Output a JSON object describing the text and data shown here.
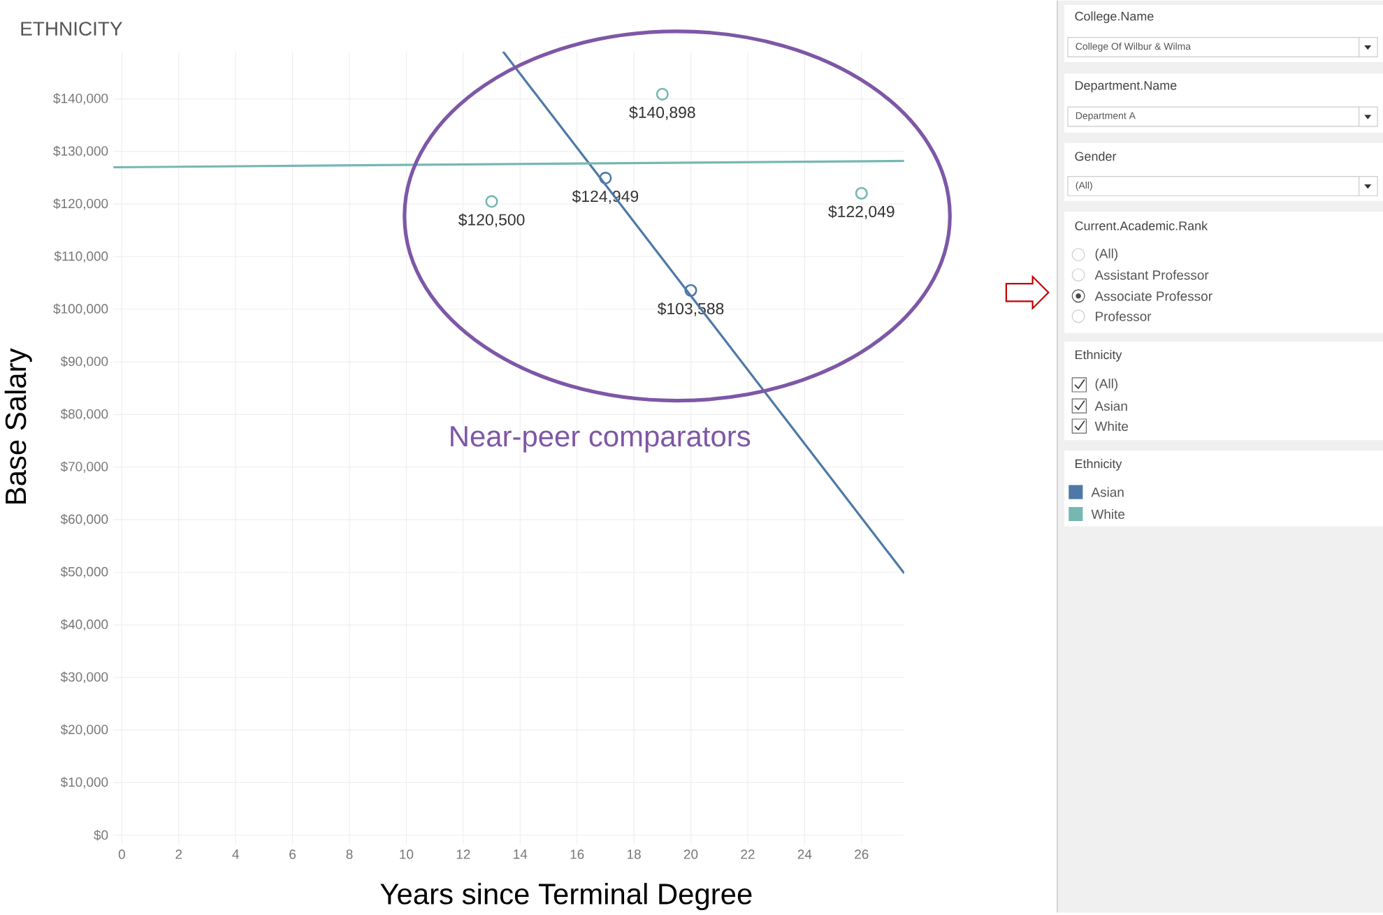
{
  "chart_data": [
    {
      "type": "scatter",
      "title": "ETHNICITY",
      "xlabel": "Years since Terminal Degree",
      "ylabel": "Base Salary",
      "legend_title": "Ethnicity",
      "legend": "right",
      "grid": true,
      "marker": "circle",
      "xlim": [
        -0.3,
        27.5
      ],
      "ylim": [
        -1800,
        149000
      ],
      "xticks": [
        0,
        2,
        4,
        6,
        8,
        10,
        12,
        14,
        16,
        18,
        20,
        22,
        24,
        26
      ],
      "yticks": [
        {
          "value": 0,
          "label": "$0"
        },
        {
          "value": 10000,
          "label": "$10,000"
        },
        {
          "value": 20000,
          "label": "$20,000"
        },
        {
          "value": 30000,
          "label": "$30,000"
        },
        {
          "value": 40000,
          "label": "$40,000"
        },
        {
          "value": 50000,
          "label": "$50,000"
        },
        {
          "value": 60000,
          "label": "$60,000"
        },
        {
          "value": 70000,
          "label": "$70,000"
        },
        {
          "value": 80000,
          "label": "$80,000"
        },
        {
          "value": 90000,
          "label": "$90,000"
        },
        {
          "value": 100000,
          "label": "$100,000"
        },
        {
          "value": 110000,
          "label": "$110,000"
        },
        {
          "value": 120000,
          "label": "$120,000"
        },
        {
          "value": 130000,
          "label": "$130,000"
        },
        {
          "value": 140000,
          "label": "$140,000"
        }
      ],
      "series": [
        {
          "name": "Asian",
          "color": "#4e79a7",
          "x": [
            17,
            20
          ],
          "values": [
            124949,
            103588
          ],
          "value_labels": [
            "$124,949",
            "$103,588"
          ]
        },
        {
          "name": "White",
          "color": "#76b7b2",
          "x": [
            13,
            19,
            26
          ],
          "values": [
            120500,
            140898,
            122049
          ],
          "value_labels": [
            "$120,500",
            "$140,898",
            "$122,049"
          ]
        },
        {
          "type": "line",
          "marker": "none",
          "color": "#4e79a7",
          "x": [
            13.4,
            27.5
          ],
          "values": [
            149000,
            49800
          ]
        },
        {
          "type": "line",
          "marker": "none",
          "color": "#76b7b2",
          "x": [
            -0.3,
            27.5
          ],
          "values": [
            127000,
            128200
          ]
        }
      ],
      "annotations": [
        "Near-peer comparators"
      ]
    },
    {
      "type": "other",
      "annotations": [
        "College.Name",
        "College Of Wilbur & Wilma",
        "Department.Name",
        "Department A",
        "Gender",
        "(All)",
        "Current.Academic.Rank",
        "(All)",
        "Assistant Professor",
        "Associate Professor",
        "Professor",
        "Ethnicity",
        "(All)",
        "Asian",
        "White"
      ]
    }
  ]
}
